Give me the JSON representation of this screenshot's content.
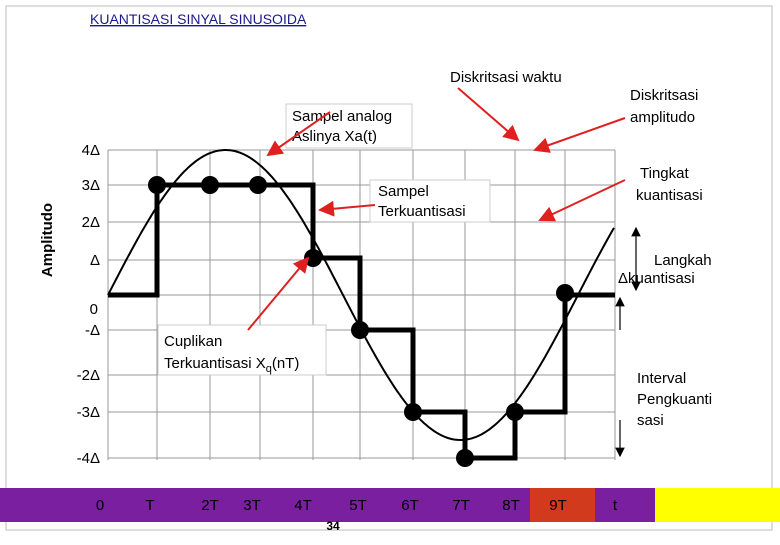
{
  "header": {
    "title": "KUANTISASI SINYAL SINUSOIDA"
  },
  "axis": {
    "y_label": "Amplitudo",
    "y_ticks": [
      "4Δ",
      "3Δ",
      "2Δ",
      "Δ",
      "0",
      "-Δ",
      "-2Δ",
      "-3Δ",
      "-4Δ"
    ],
    "x_ticks": [
      "0",
      "T",
      "2T",
      "3T",
      "4T",
      "5T",
      "6T",
      "7T",
      "8T",
      "9T",
      "t"
    ]
  },
  "annotations": {
    "diskritsasi_waktu": "Diskritsasi waktu",
    "diskritsasi_amplitudo": [
      "Diskritsasi",
      "amplitudo"
    ],
    "sampel_analog": [
      "Sampel analog",
      "Aslinya Xa(t)"
    ],
    "sampel_terkuantisasi": [
      "Sampel",
      "Terkuantisasi"
    ],
    "tingkat_kuantisasi": [
      "Tingkat",
      "kuantisasi"
    ],
    "langkah_kuantisasi": [
      "Langkah",
      "Δkuantisasi"
    ],
    "cuplikan": [
      "Cuplikan",
      "Terkuantisasi X",
      "q",
      "(nT)"
    ],
    "interval": [
      "Interval",
      "Pengkuanti",
      "sasi"
    ]
  },
  "footer": {
    "page": "34"
  }
}
